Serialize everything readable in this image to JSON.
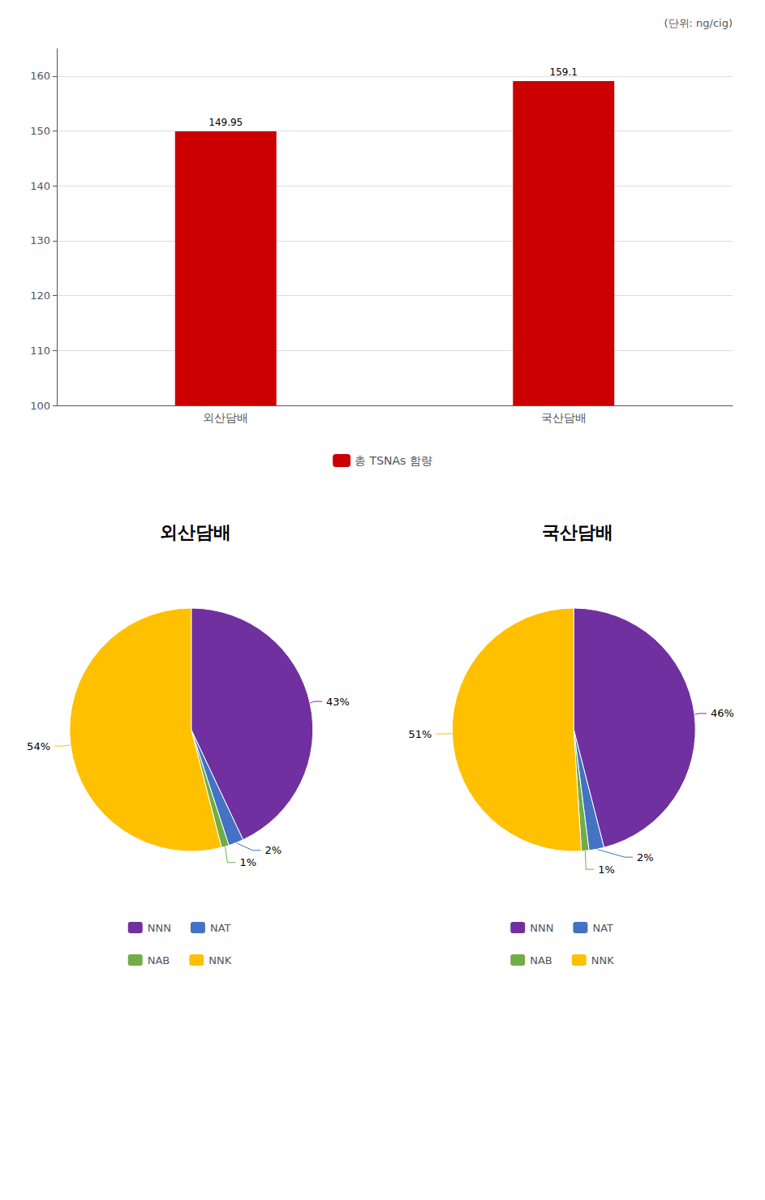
{
  "chart_data": [
    {
      "type": "bar",
      "categories": [
        "외산담배",
        "국산담배"
      ],
      "series": [
        {
          "name": "총 TSNAs 함량",
          "color": "#cc0000",
          "values": [
            149.95,
            159.1
          ]
        }
      ],
      "ylim": [
        100,
        165
      ],
      "yticks": [
        100,
        110,
        120,
        130,
        140,
        150,
        160
      ],
      "grid": true,
      "data_labels": true,
      "legend": "bottom",
      "annotations": [
        "(단위: ng/cig)"
      ]
    },
    {
      "type": "pie",
      "title": "외산담배",
      "categories": [
        "NNN",
        "NAT",
        "NAB",
        "NNK"
      ],
      "values": [
        43,
        2,
        1,
        54
      ],
      "value_labels": [
        "43%",
        "2%",
        "1%",
        "54%"
      ],
      "colors": [
        "#7030a0",
        "#4472c4",
        "#70ad47",
        "#ffc000"
      ],
      "data_labels": true,
      "legend": "bottom"
    },
    {
      "type": "pie",
      "title": "국산담배",
      "categories": [
        "NNN",
        "NAT",
        "NAB",
        "NNK"
      ],
      "values": [
        46,
        2,
        1,
        51
      ],
      "value_labels": [
        "46%",
        "2%",
        "1%",
        "51%"
      ],
      "colors": [
        "#7030a0",
        "#4472c4",
        "#70ad47",
        "#ffc000"
      ],
      "data_labels": true,
      "legend": "bottom"
    }
  ]
}
